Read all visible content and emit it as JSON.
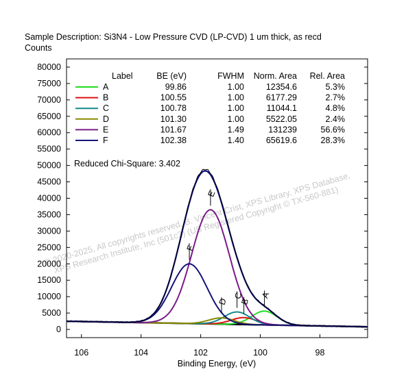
{
  "header": {
    "title": "Sample Description:  Si3N4 - Low Pressure CVD (LP-CVD) 1 um thick, as recd",
    "counts_label": "Counts"
  },
  "chart_data": {
    "type": "line",
    "xlabel": "Binding Energy, (eV)",
    "ylabel": "Counts",
    "xlim": [
      106.5,
      96.4
    ],
    "ylim": [
      -2500,
      82500
    ],
    "x_ticks": [
      106,
      104,
      102,
      100,
      98
    ],
    "y_ticks": [
      0,
      5000,
      10000,
      15000,
      20000,
      25000,
      30000,
      35000,
      40000,
      45000,
      50000,
      55000,
      60000,
      65000,
      70000,
      75000,
      80000
    ],
    "reduced_chi_square_label": "Reduced Chi-Square: 3.402",
    "legend_headers": [
      "Label",
      "BE (eV)",
      "FWHM",
      "Norm. Area",
      "Rel. Area"
    ],
    "background": {
      "left": 2500,
      "right": 800
    },
    "peaks": [
      {
        "label": "A",
        "be": "99.86",
        "fwhm": "1.00",
        "area": "12354.6",
        "rel": "5.3%",
        "color": "#22dd22",
        "center": 99.86,
        "height": 4200,
        "width": 1.0
      },
      {
        "label": "B",
        "be": "100.55",
        "fwhm": "1.00",
        "area": "6177.29",
        "rel": "2.7%",
        "color": "#dd1111",
        "center": 100.55,
        "height": 2100,
        "width": 1.0
      },
      {
        "label": "C",
        "be": "100.78",
        "fwhm": "1.00",
        "area": "11044.1",
        "rel": "4.8%",
        "color": "#118888",
        "center": 100.78,
        "height": 3800,
        "width": 1.0
      },
      {
        "label": "D",
        "be": "101.30",
        "fwhm": "1.00",
        "area": "5522.05",
        "rel": "2.4%",
        "color": "#888800",
        "center": 101.3,
        "height": 1900,
        "width": 1.0
      },
      {
        "label": "E",
        "be": "101.67",
        "fwhm": "1.49",
        "area": "131239",
        "rel": "56.6%",
        "color": "#7a1a8a",
        "center": 101.67,
        "height": 34800,
        "width": 1.49
      },
      {
        "label": "F",
        "be": "102.38",
        "fwhm": "1.40",
        "area": "65619.6",
        "rel": "28.3%",
        "color": "#14147a",
        "center": 102.38,
        "height": 18200,
        "width": 1.4
      }
    ],
    "envelope_color": "#0a0a7a",
    "data_color": "#000000",
    "grid": false,
    "legend_position": "top-left"
  },
  "watermark": {
    "line1": "©  2020-2025,  All copyrights reserved,   B. Vincent Crist,  XPS Library, XPS Database,",
    "line2": "XPS Research Institute, Inc (501c3)   (US Registered Copyright © TX-560-881)"
  }
}
